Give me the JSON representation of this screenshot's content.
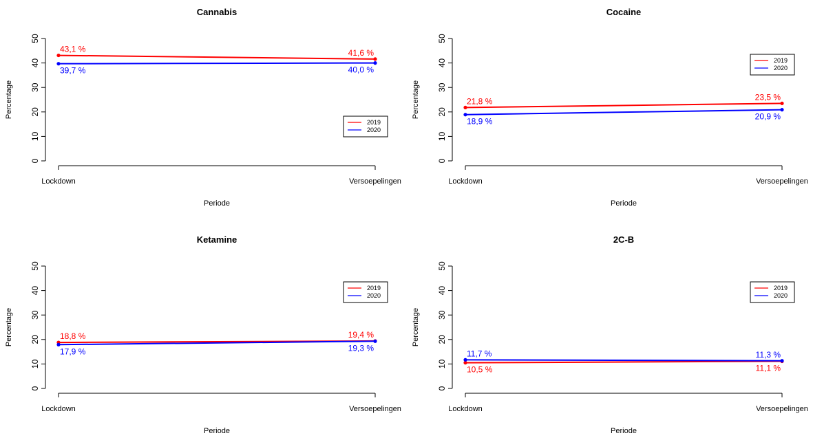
{
  "chart_data": [
    {
      "type": "line",
      "title": "Cannabis",
      "xlabel": "Periode",
      "ylabel": "Percentage",
      "categories": [
        "Lockdown",
        "Versoepelingen"
      ],
      "ylim": [
        0,
        50
      ],
      "yticks": [
        "0",
        "10",
        "20",
        "30",
        "40",
        "50"
      ],
      "grid": false,
      "legend_position": "bottom-right",
      "series": [
        {
          "name": "2019",
          "color": "#ff0000",
          "values": [
            43.1,
            41.6
          ],
          "labels": [
            "43,1 %",
            "41,6 %"
          ],
          "label_side": [
            "above",
            "above"
          ]
        },
        {
          "name": "2020",
          "color": "#0000ff",
          "values": [
            39.7,
            40.0
          ],
          "labels": [
            "39,7 %",
            "40,0 %"
          ],
          "label_side": [
            "below",
            "below"
          ]
        }
      ]
    },
    {
      "type": "line",
      "title": "Cocaine",
      "xlabel": "Periode",
      "ylabel": "Percentage",
      "categories": [
        "Lockdown",
        "Versoepelingen"
      ],
      "ylim": [
        0,
        50
      ],
      "yticks": [
        "0",
        "10",
        "20",
        "30",
        "40",
        "50"
      ],
      "grid": false,
      "legend_position": "top-right",
      "series": [
        {
          "name": "2019",
          "color": "#ff0000",
          "values": [
            21.8,
            23.5
          ],
          "labels": [
            "21,8 %",
            "23,5 %"
          ],
          "label_side": [
            "above",
            "above"
          ]
        },
        {
          "name": "2020",
          "color": "#0000ff",
          "values": [
            18.9,
            20.9
          ],
          "labels": [
            "18,9 %",
            "20,9 %"
          ],
          "label_side": [
            "below",
            "below"
          ]
        }
      ]
    },
    {
      "type": "line",
      "title": "Ketamine",
      "xlabel": "Periode",
      "ylabel": "Percentage",
      "categories": [
        "Lockdown",
        "Versoepelingen"
      ],
      "ylim": [
        0,
        50
      ],
      "yticks": [
        "0",
        "10",
        "20",
        "30",
        "40",
        "50"
      ],
      "grid": false,
      "legend_position": "top-right",
      "series": [
        {
          "name": "2019",
          "color": "#ff0000",
          "values": [
            18.8,
            19.4
          ],
          "labels": [
            "18,8 %",
            "19,4 %"
          ],
          "label_side": [
            "above",
            "above"
          ]
        },
        {
          "name": "2020",
          "color": "#0000ff",
          "values": [
            17.9,
            19.3
          ],
          "labels": [
            "17,9 %",
            "19,3 %"
          ],
          "label_side": [
            "below",
            "below"
          ]
        }
      ]
    },
    {
      "type": "line",
      "title": "2C-B",
      "xlabel": "Periode",
      "ylabel": "Percentage",
      "categories": [
        "Lockdown",
        "Versoepelingen"
      ],
      "ylim": [
        0,
        50
      ],
      "yticks": [
        "0",
        "10",
        "20",
        "30",
        "40",
        "50"
      ],
      "grid": false,
      "legend_position": "top-right",
      "series": [
        {
          "name": "2019",
          "color": "#ff0000",
          "values": [
            10.5,
            11.1
          ],
          "labels": [
            "10,5 %",
            "11,1 %"
          ],
          "label_side": [
            "below",
            "below"
          ]
        },
        {
          "name": "2020",
          "color": "#0000ff",
          "values": [
            11.7,
            11.3
          ],
          "labels": [
            "11,7 %",
            "11,3 %"
          ],
          "label_side": [
            "above",
            "above"
          ]
        }
      ]
    }
  ]
}
